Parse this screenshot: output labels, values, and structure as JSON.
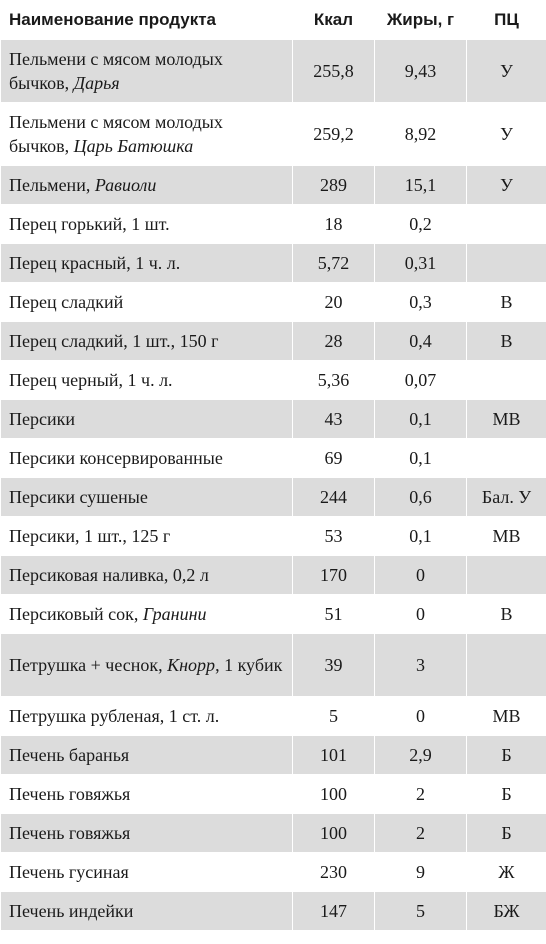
{
  "header": {
    "name": "Наименование продукта",
    "kcal": "Ккал",
    "fat": "Жиры, г",
    "pc": "ПЦ"
  },
  "rows": [
    {
      "name": "Пельмени с мясом молодых бычков, ",
      "italic": "Дарья",
      "kcal": "255,8",
      "fat": "9,43",
      "pc": "У"
    },
    {
      "name": "Пельмени с мясом молодых бычков, ",
      "italic": "Царь Батюшка",
      "kcal": "259,2",
      "fat": "8,92",
      "pc": "У"
    },
    {
      "name": "Пельмени, ",
      "italic": "Равиоли",
      "kcal": "289",
      "fat": "15,1",
      "pc": "У"
    },
    {
      "name": "Перец горький, 1 шт.",
      "italic": "",
      "kcal": "18",
      "fat": "0,2",
      "pc": ""
    },
    {
      "name": "Перец красный, 1 ч. л.",
      "italic": "",
      "kcal": "5,72",
      "fat": "0,31",
      "pc": ""
    },
    {
      "name": "Перец сладкий",
      "italic": "",
      "kcal": "20",
      "fat": "0,3",
      "pc": "В"
    },
    {
      "name": "Перец сладкий, 1 шт., 150 г",
      "italic": "",
      "kcal": "28",
      "fat": "0,4",
      "pc": "В"
    },
    {
      "name": "Перец черный, 1 ч. л.",
      "italic": "",
      "kcal": "5,36",
      "fat": "0,07",
      "pc": ""
    },
    {
      "name": "Персики",
      "italic": "",
      "kcal": "43",
      "fat": "0,1",
      "pc": "МВ"
    },
    {
      "name": "Персики консервированные",
      "italic": "",
      "kcal": "69",
      "fat": "0,1",
      "pc": ""
    },
    {
      "name": "Персики сушеные",
      "italic": "",
      "kcal": "244",
      "fat": "0,6",
      "pc": "Бал. У"
    },
    {
      "name": "Персики, 1 шт., 125 г",
      "italic": "",
      "kcal": "53",
      "fat": "0,1",
      "pc": "МВ"
    },
    {
      "name": "Персиковая наливка, 0,2 л",
      "italic": "",
      "kcal": "170",
      "fat": "0",
      "pc": ""
    },
    {
      "name": "Персиковый сок, ",
      "italic": "Гранини",
      "kcal": "51",
      "fat": "0",
      "pc": "В"
    },
    {
      "name": "Петрушка + чеснок, ",
      "italic": "Кнорр",
      "suffix": ", 1 кубик",
      "kcal": "39",
      "fat": "3",
      "pc": ""
    },
    {
      "name": "Петрушка рубленая, 1 ст. л.",
      "italic": "",
      "kcal": "5",
      "fat": "0",
      "pc": "МВ"
    },
    {
      "name": "Печень баранья",
      "italic": "",
      "kcal": "101",
      "fat": "2,9",
      "pc": "Б"
    },
    {
      "name": "Печень говяжья",
      "italic": "",
      "kcal": "100",
      "fat": "2",
      "pc": "Б"
    },
    {
      "name": "Печень говяжья",
      "italic": "",
      "kcal": "100",
      "fat": "2",
      "pc": "Б"
    },
    {
      "name": "Печень гусиная",
      "italic": "",
      "kcal": "230",
      "fat": "9",
      "pc": "Ж"
    },
    {
      "name": "Печень индейки",
      "italic": "",
      "kcal": "147",
      "fat": "5",
      "pc": "БЖ"
    }
  ]
}
